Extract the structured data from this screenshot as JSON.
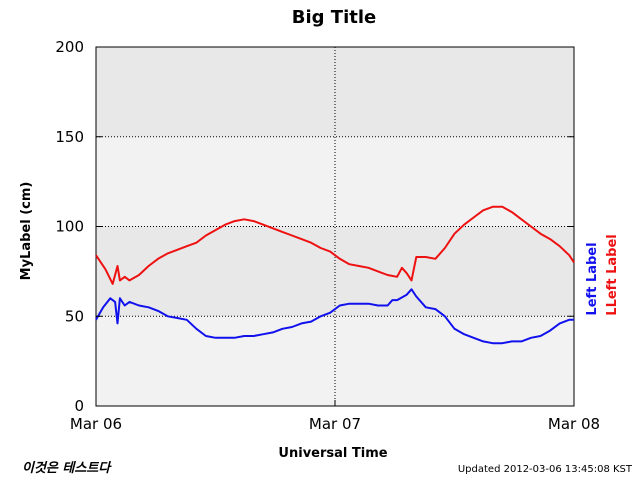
{
  "chart_data": {
    "type": "line",
    "title": "Big Title",
    "xlabel": "Universal Time",
    "ylabel": "MyLabel (cm)",
    "x_ticks": [
      "Mar 06",
      "Mar 07",
      "Mar 08"
    ],
    "y_ticks": [
      0,
      50,
      100,
      150,
      200
    ],
    "xlim_days": [
      0,
      2
    ],
    "ylim": [
      0,
      200
    ],
    "grid": true,
    "series": [
      {
        "name": "LLeft Label",
        "color": "#ee1111",
        "axis_label": "LLeft Label",
        "points": [
          [
            0.0,
            84
          ],
          [
            0.04,
            76
          ],
          [
            0.07,
            68
          ],
          [
            0.09,
            78
          ],
          [
            0.1,
            70
          ],
          [
            0.12,
            72
          ],
          [
            0.14,
            70
          ],
          [
            0.18,
            73
          ],
          [
            0.22,
            78
          ],
          [
            0.26,
            82
          ],
          [
            0.3,
            85
          ],
          [
            0.34,
            87
          ],
          [
            0.38,
            89
          ],
          [
            0.42,
            91
          ],
          [
            0.46,
            95
          ],
          [
            0.5,
            98
          ],
          [
            0.54,
            101
          ],
          [
            0.58,
            103
          ],
          [
            0.62,
            104
          ],
          [
            0.66,
            103
          ],
          [
            0.7,
            101
          ],
          [
            0.74,
            99
          ],
          [
            0.78,
            97
          ],
          [
            0.82,
            95
          ],
          [
            0.86,
            93
          ],
          [
            0.9,
            91
          ],
          [
            0.94,
            88
          ],
          [
            0.98,
            86
          ],
          [
            1.02,
            82
          ],
          [
            1.06,
            79
          ],
          [
            1.1,
            78
          ],
          [
            1.14,
            77
          ],
          [
            1.18,
            75
          ],
          [
            1.22,
            73
          ],
          [
            1.26,
            72
          ],
          [
            1.28,
            77
          ],
          [
            1.3,
            74
          ],
          [
            1.32,
            70
          ],
          [
            1.34,
            83
          ],
          [
            1.38,
            83
          ],
          [
            1.42,
            82
          ],
          [
            1.46,
            88
          ],
          [
            1.5,
            96
          ],
          [
            1.54,
            101
          ],
          [
            1.58,
            105
          ],
          [
            1.62,
            109
          ],
          [
            1.66,
            111
          ],
          [
            1.7,
            111
          ],
          [
            1.74,
            108
          ],
          [
            1.78,
            104
          ],
          [
            1.82,
            100
          ],
          [
            1.86,
            96
          ],
          [
            1.9,
            93
          ],
          [
            1.94,
            89
          ],
          [
            1.98,
            84
          ],
          [
            2.0,
            80
          ]
        ]
      },
      {
        "name": "Left Label",
        "color": "#1111ee",
        "axis_label": "Left Label",
        "points": [
          [
            0.0,
            48
          ],
          [
            0.03,
            55
          ],
          [
            0.06,
            60
          ],
          [
            0.08,
            58
          ],
          [
            0.09,
            46
          ],
          [
            0.1,
            60
          ],
          [
            0.12,
            56
          ],
          [
            0.14,
            58
          ],
          [
            0.18,
            56
          ],
          [
            0.22,
            55
          ],
          [
            0.26,
            53
          ],
          [
            0.3,
            50
          ],
          [
            0.34,
            49
          ],
          [
            0.38,
            48
          ],
          [
            0.42,
            43
          ],
          [
            0.46,
            39
          ],
          [
            0.5,
            38
          ],
          [
            0.54,
            38
          ],
          [
            0.58,
            38
          ],
          [
            0.62,
            39
          ],
          [
            0.66,
            39
          ],
          [
            0.7,
            40
          ],
          [
            0.74,
            41
          ],
          [
            0.78,
            43
          ],
          [
            0.82,
            44
          ],
          [
            0.86,
            46
          ],
          [
            0.9,
            47
          ],
          [
            0.94,
            50
          ],
          [
            0.98,
            52
          ],
          [
            1.02,
            56
          ],
          [
            1.06,
            57
          ],
          [
            1.1,
            57
          ],
          [
            1.14,
            57
          ],
          [
            1.18,
            56
          ],
          [
            1.22,
            56
          ],
          [
            1.24,
            59
          ],
          [
            1.26,
            59
          ],
          [
            1.3,
            62
          ],
          [
            1.32,
            65
          ],
          [
            1.34,
            61
          ],
          [
            1.38,
            55
          ],
          [
            1.42,
            54
          ],
          [
            1.46,
            50
          ],
          [
            1.5,
            43
          ],
          [
            1.54,
            40
          ],
          [
            1.58,
            38
          ],
          [
            1.62,
            36
          ],
          [
            1.66,
            35
          ],
          [
            1.7,
            35
          ],
          [
            1.74,
            36
          ],
          [
            1.78,
            36
          ],
          [
            1.82,
            38
          ],
          [
            1.86,
            39
          ],
          [
            1.9,
            42
          ],
          [
            1.94,
            46
          ],
          [
            1.98,
            48
          ],
          [
            2.0,
            48
          ]
        ]
      }
    ]
  },
  "footer": {
    "left_text": "이것은 테스트다",
    "updated": "Updated 2012-03-06 13:45:08 KST"
  }
}
